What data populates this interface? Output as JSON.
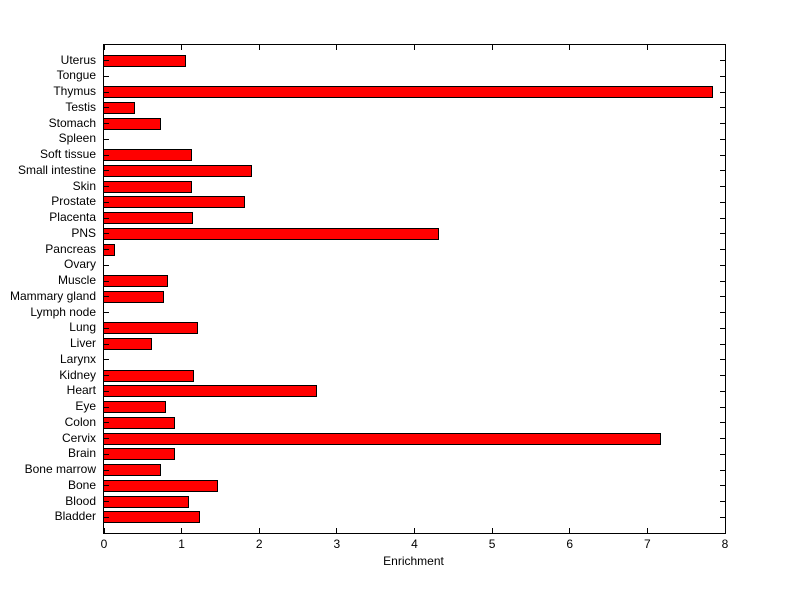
{
  "chart_data": {
    "type": "bar",
    "orientation": "horizontal",
    "title": "",
    "xlabel": "Enrichment",
    "ylabel": "",
    "xlim": [
      0,
      8
    ],
    "xticks": [
      0,
      1,
      2,
      3,
      4,
      5,
      6,
      7,
      8
    ],
    "grid": false,
    "legend": "none",
    "bar_color": "#ff0000",
    "bar_edge_color": "#000000",
    "categories": [
      "Uterus",
      "Tongue",
      "Thymus",
      "Testis",
      "Stomach",
      "Spleen",
      "Soft tissue",
      "Small intestine",
      "Skin",
      "Prostate",
      "Placenta",
      "PNS",
      "Pancreas",
      "Ovary",
      "Muscle",
      "Mammary gland",
      "Lymph node",
      "Lung",
      "Liver",
      "Larynx",
      "Kidney",
      "Heart",
      "Eye",
      "Colon",
      "Cervix",
      "Brain",
      "Bone marrow",
      "Bone",
      "Blood",
      "Bladder"
    ],
    "values": [
      1.05,
      0,
      7.85,
      0.4,
      0.74,
      0,
      1.14,
      1.91,
      1.14,
      1.82,
      1.15,
      4.31,
      0.14,
      0,
      0.82,
      0.77,
      0,
      1.21,
      0.62,
      0,
      1.16,
      2.74,
      0.8,
      0.91,
      7.17,
      0.91,
      0.74,
      1.47,
      1.09,
      1.24
    ]
  }
}
